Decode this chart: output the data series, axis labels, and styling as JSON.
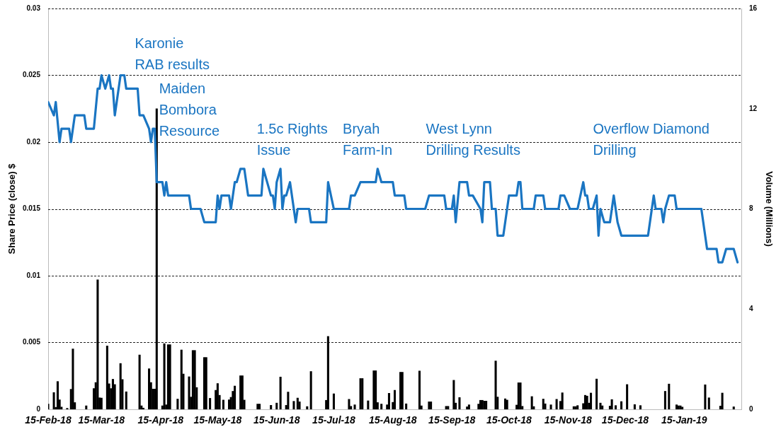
{
  "chart_data": {
    "type": "line",
    "ylabel": "Share Price (close) $",
    "y2label": "Volume (Millions)",
    "xlim": [
      "2018-02-15",
      "2019-02-14"
    ],
    "xticks": [
      {
        "value": "2018-02-15",
        "label": "15-Feb-18"
      },
      {
        "value": "2018-03-15",
        "label": "15-Mar-18"
      },
      {
        "value": "2018-04-15",
        "label": "15-Apr-18"
      },
      {
        "value": "2018-05-15",
        "label": "15-May-18"
      },
      {
        "value": "2018-06-15",
        "label": "15-Jun-18"
      },
      {
        "value": "2018-07-15",
        "label": "15-Jul-18"
      },
      {
        "value": "2018-08-15",
        "label": "15-Aug-18"
      },
      {
        "value": "2018-09-15",
        "label": "15-Sep-18"
      },
      {
        "value": "2018-10-15",
        "label": "15-Oct-18"
      },
      {
        "value": "2018-11-15",
        "label": "15-Nov-18"
      },
      {
        "value": "2018-12-15",
        "label": "15-Dec-18"
      },
      {
        "value": "2019-01-15",
        "label": "15-Jan-19"
      }
    ],
    "ylim": [
      0,
      0.03
    ],
    "yticks": [
      0,
      0.005,
      0.01,
      0.015,
      0.02,
      0.025,
      0.03
    ],
    "y2lim": [
      0,
      16
    ],
    "y2ticks": [
      0,
      4,
      8,
      12,
      16
    ],
    "grid": "y",
    "series": [
      {
        "type": "bar",
        "axis": "y2",
        "color": "#000000",
        "x": [
          "2018-02-15",
          "2018-02-18",
          "2018-02-19",
          "2018-02-20",
          "2018-02-21",
          "2018-02-22",
          "2018-02-25",
          "2018-02-27",
          "2018-02-28",
          "2018-03-01",
          "2018-03-07",
          "2018-03-11",
          "2018-03-12",
          "2018-03-13",
          "2018-03-14",
          "2018-03-15",
          "2018-03-18",
          "2018-03-19",
          "2018-03-20",
          "2018-03-21",
          "2018-03-22",
          "2018-03-25",
          "2018-03-26",
          "2018-03-28",
          "2018-04-04",
          "2018-04-05",
          "2018-04-06",
          "2018-04-09",
          "2018-04-10",
          "2018-04-11",
          "2018-04-12",
          "2018-04-13",
          "2018-04-16",
          "2018-04-17",
          "2018-04-18",
          "2018-04-19",
          "2018-04-20",
          "2018-04-24",
          "2018-04-26",
          "2018-04-27",
          "2018-04-30",
          "2018-05-01",
          "2018-05-02",
          "2018-05-03",
          "2018-05-04",
          "2018-05-08",
          "2018-05-09",
          "2018-05-11",
          "2018-05-14",
          "2018-05-15",
          "2018-05-16",
          "2018-05-18",
          "2018-05-21",
          "2018-05-22",
          "2018-05-23",
          "2018-05-24",
          "2018-05-27",
          "2018-05-28",
          "2018-05-29",
          "2018-06-05",
          "2018-06-06",
          "2018-06-12",
          "2018-06-15",
          "2018-06-17",
          "2018-06-20",
          "2018-06-21",
          "2018-06-24",
          "2018-06-26",
          "2018-06-27",
          "2018-07-01",
          "2018-07-03",
          "2018-07-11",
          "2018-07-12",
          "2018-07-15",
          "2018-07-23",
          "2018-07-24",
          "2018-07-26",
          "2018-07-29",
          "2018-07-30",
          "2018-08-02",
          "2018-08-05",
          "2018-08-06",
          "2018-08-07",
          "2018-08-09",
          "2018-08-12",
          "2018-08-13",
          "2018-08-15",
          "2018-08-16",
          "2018-08-19",
          "2018-08-20",
          "2018-08-22",
          "2018-08-29",
          "2018-08-30",
          "2018-09-03",
          "2018-09-04",
          "2018-09-12",
          "2018-09-13",
          "2018-09-16",
          "2018-09-17",
          "2018-09-19",
          "2018-09-23",
          "2018-09-24",
          "2018-09-29",
          "2018-09-30",
          "2018-10-01",
          "2018-10-02",
          "2018-10-03",
          "2018-10-08",
          "2018-10-09",
          "2018-10-13",
          "2018-10-14",
          "2018-10-19",
          "2018-10-20",
          "2018-10-21",
          "2018-10-22",
          "2018-10-27",
          "2018-10-28",
          "2018-11-02",
          "2018-11-03",
          "2018-11-06",
          "2018-11-09",
          "2018-11-11",
          "2018-11-12",
          "2018-11-18",
          "2018-11-19",
          "2018-11-20",
          "2018-11-23",
          "2018-11-24",
          "2018-11-25",
          "2018-11-26",
          "2018-11-27",
          "2018-11-30",
          "2018-12-02",
          "2018-12-03",
          "2018-12-07",
          "2018-12-08",
          "2018-12-10",
          "2018-12-13",
          "2018-12-16",
          "2018-12-20",
          "2018-12-23",
          "2019-01-05",
          "2019-01-07",
          "2019-01-11",
          "2019-01-12",
          "2019-01-13",
          "2019-01-14",
          "2019-01-26",
          "2019-01-28",
          "2019-02-03",
          "2019-02-04",
          "2019-02-10"
        ],
        "values": [
          0.21,
          0.67,
          0.08,
          1.11,
          0.38,
          0.09,
          0.04,
          0.8,
          2.41,
          0.27,
          0.14,
          0.83,
          1.07,
          5.17,
          0.46,
          0.45,
          2.53,
          1.02,
          0.83,
          1.2,
          0.99,
          1.83,
          1.19,
          0.7,
          2.17,
          0.14,
          0.05,
          1.62,
          1.07,
          0.81,
          0.81,
          12.0,
          0.14,
          2.62,
          0.18,
          2.58,
          2.58,
          0.41,
          2.37,
          1.41,
          1.3,
          0.49,
          2.35,
          2.35,
          0.87,
          2.07,
          2.07,
          0.44,
          0.76,
          1.03,
          0.56,
          0.37,
          0.38,
          0.48,
          0.72,
          0.93,
          1.34,
          1.34,
          0.37,
          0.21,
          0.21,
          0.16,
          0.25,
          1.29,
          0.16,
          0.69,
          0.32,
          0.45,
          0.3,
          0.11,
          1.51,
          0.36,
          2.91,
          0.62,
          0.4,
          0.12,
          0.18,
          1.23,
          1.23,
          0.34,
          1.54,
          1.54,
          0.27,
          0.21,
          0.18,
          0.64,
          0.28,
          0.76,
          1.48,
          1.48,
          0.22,
          1.53,
          0.14,
          0.3,
          0.3,
          0.12,
          0.12,
          1.16,
          0.25,
          0.47,
          0.1,
          0.18,
          0.21,
          0.36,
          0.36,
          0.33,
          0.33,
          1.93,
          0.49,
          0.42,
          0.37,
          0.17,
          1.06,
          1.06,
          0.12,
          0.51,
          0.11,
          0.41,
          0.22,
          0.18,
          0.4,
          0.32,
          0.66,
          0.11,
          0.11,
          0.15,
          0.23,
          0.56,
          0.53,
          0.25,
          0.65,
          1.21,
          0.25,
          0.14,
          0.13,
          0.39,
          0.15,
          0.31,
          0.99,
          0.19,
          0.15,
          0.72,
          1.01,
          0.18,
          0.14,
          0.14,
          0.09,
          0.98,
          0.46,
          0.13,
          0.65,
          0.1
        ]
      },
      {
        "axis": "y",
        "color": "#1a75c2",
        "x": [
          "2018-02-15",
          "2018-02-18",
          "2018-02-19",
          "2018-02-21",
          "2018-02-22",
          "2018-02-26",
          "2018-02-27",
          "2018-03-01",
          "2018-03-06",
          "2018-03-07",
          "2018-03-11",
          "2018-03-13",
          "2018-03-14",
          "2018-03-15",
          "2018-03-17",
          "2018-03-19",
          "2018-03-20",
          "2018-03-21",
          "2018-03-22",
          "2018-03-25",
          "2018-03-27",
          "2018-03-28",
          "2018-04-03",
          "2018-04-04",
          "2018-04-06",
          "2018-04-09",
          "2018-04-10",
          "2018-04-11",
          "2018-04-12",
          "2018-04-13",
          "2018-04-16",
          "2018-04-17",
          "2018-04-18",
          "2018-04-19",
          "2018-04-30",
          "2018-05-01",
          "2018-05-06",
          "2018-05-08",
          "2018-05-14",
          "2018-05-15",
          "2018-05-16",
          "2018-05-17",
          "2018-05-21",
          "2018-05-22",
          "2018-05-24",
          "2018-05-25",
          "2018-05-27",
          "2018-05-29",
          "2018-05-31",
          "2018-06-07",
          "2018-06-08",
          "2018-06-12",
          "2018-06-13",
          "2018-06-14",
          "2018-06-15",
          "2018-06-17",
          "2018-06-18",
          "2018-06-19",
          "2018-06-20",
          "2018-06-22",
          "2018-06-24",
          "2018-06-25",
          "2018-06-26",
          "2018-07-02",
          "2018-07-03",
          "2018-07-11",
          "2018-07-12",
          "2018-07-15",
          "2018-07-23",
          "2018-07-24",
          "2018-07-26",
          "2018-07-29",
          "2018-08-06",
          "2018-08-07",
          "2018-08-09",
          "2018-08-15",
          "2018-08-16",
          "2018-08-21",
          "2018-08-22",
          "2018-09-01",
          "2018-09-03",
          "2018-09-11",
          "2018-09-12",
          "2018-09-15",
          "2018-09-16",
          "2018-09-17",
          "2018-09-19",
          "2018-09-23",
          "2018-09-24",
          "2018-09-26",
          "2018-09-30",
          "2018-10-01",
          "2018-10-02",
          "2018-10-05",
          "2018-10-06",
          "2018-10-08",
          "2018-10-09",
          "2018-10-12",
          "2018-10-14",
          "2018-10-15",
          "2018-10-19",
          "2018-10-20",
          "2018-10-21",
          "2018-10-22",
          "2018-10-28",
          "2018-10-29",
          "2018-11-02",
          "2018-11-03",
          "2018-11-10",
          "2018-11-11",
          "2018-11-13",
          "2018-11-16",
          "2018-11-20",
          "2018-11-23",
          "2018-11-24",
          "2018-11-25",
          "2018-11-26",
          "2018-11-28",
          "2018-11-30",
          "2018-12-01",
          "2018-12-02",
          "2018-12-04",
          "2018-12-07",
          "2018-12-09",
          "2018-12-11",
          "2018-12-13",
          "2018-12-27",
          "2018-12-30",
          "2018-12-31",
          "2019-01-03",
          "2019-01-04",
          "2019-01-05",
          "2019-01-07",
          "2019-01-10",
          "2019-01-11",
          "2019-01-24",
          "2019-01-27",
          "2019-02-01",
          "2019-02-02",
          "2019-02-04",
          "2019-02-06",
          "2019-02-10",
          "2019-02-12"
        ],
        "values": [
          0.023,
          0.022,
          0.023,
          0.02,
          0.021,
          0.021,
          0.02,
          0.022,
          0.022,
          0.021,
          0.021,
          0.024,
          0.024,
          0.025,
          0.024,
          0.025,
          0.024,
          0.024,
          0.022,
          0.025,
          0.025,
          0.024,
          0.024,
          0.022,
          0.022,
          0.021,
          0.02,
          0.021,
          0.021,
          0.017,
          0.017,
          0.016,
          0.017,
          0.016,
          0.016,
          0.015,
          0.015,
          0.014,
          0.014,
          0.016,
          0.015,
          0.016,
          0.016,
          0.015,
          0.017,
          0.017,
          0.018,
          0.018,
          0.016,
          0.016,
          0.018,
          0.016,
          0.016,
          0.015,
          0.017,
          0.018,
          0.015,
          0.016,
          0.016,
          0.017,
          0.015,
          0.014,
          0.015,
          0.015,
          0.014,
          0.014,
          0.017,
          0.015,
          0.015,
          0.016,
          0.016,
          0.017,
          0.017,
          0.018,
          0.017,
          0.017,
          0.016,
          0.016,
          0.015,
          0.015,
          0.016,
          0.016,
          0.015,
          0.015,
          0.016,
          0.014,
          0.017,
          0.017,
          0.016,
          0.016,
          0.015,
          0.014,
          0.017,
          0.017,
          0.015,
          0.015,
          0.013,
          0.013,
          0.015,
          0.016,
          0.016,
          0.017,
          0.017,
          0.015,
          0.015,
          0.016,
          0.016,
          0.015,
          0.015,
          0.016,
          0.016,
          0.015,
          0.015,
          0.017,
          0.016,
          0.016,
          0.015,
          0.015,
          0.016,
          0.013,
          0.015,
          0.014,
          0.014,
          0.016,
          0.014,
          0.013,
          0.013,
          0.016,
          0.015,
          0.015,
          0.014,
          0.015,
          0.016,
          0.016,
          0.015,
          0.015,
          0.012,
          0.012,
          0.011,
          0.011,
          0.012,
          0.012,
          0.011
        ]
      }
    ],
    "annotations": [
      "Karonie\nRAB results",
      "Maiden\nBombora\nResource",
      "1.5c Rights\nIssue",
      "Bryah\nFarm-In",
      "West Lynn\nDrilling Results",
      "Overflow Diamond\nDrilling"
    ]
  }
}
